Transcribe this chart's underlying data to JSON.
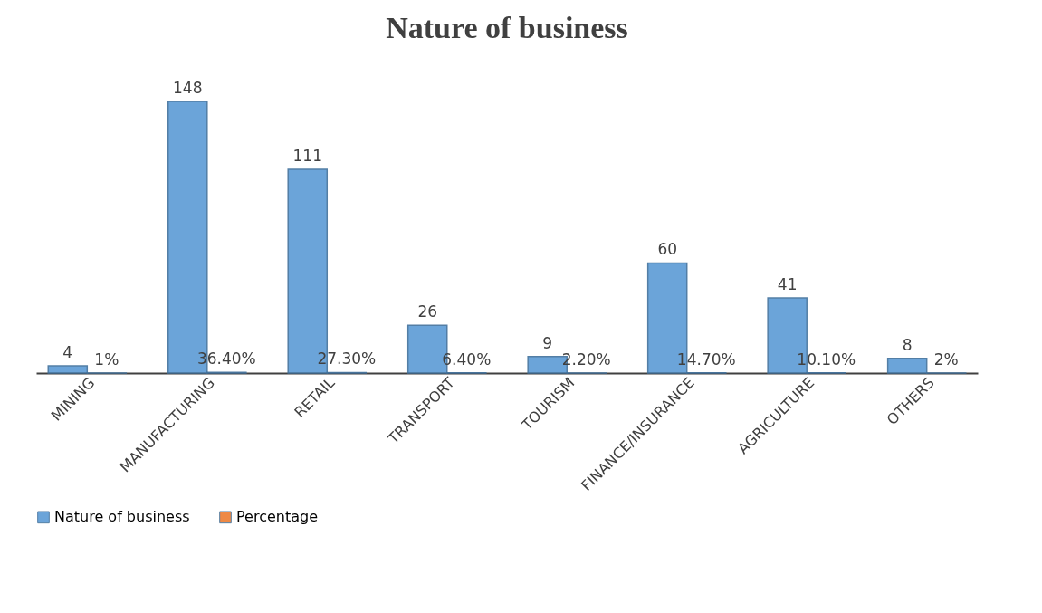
{
  "chart_data": {
    "type": "bar",
    "title": "Nature of business",
    "categories": [
      "MINING",
      "MANUFACTURING",
      "RETAIL",
      "TRANSPORT",
      "TOURISM",
      "FINANCE/INSURANCE",
      "AGRICULTURE",
      "OTHERS"
    ],
    "series": [
      {
        "name": "Nature of business",
        "color": "#5b9bd5",
        "values": [
          4,
          148,
          111,
          26,
          9,
          60,
          41,
          8
        ],
        "value_labels": [
          "4",
          "148",
          "111",
          "26",
          "9",
          "60",
          "41",
          "8"
        ]
      },
      {
        "name": "Percentage",
        "color": "#ed7d31",
        "values": [
          0.01,
          0.364,
          0.273,
          0.064,
          0.022,
          0.147,
          0.101,
          0.02
        ],
        "value_labels": [
          "1%",
          "36.40%",
          "27.30%",
          "6.40%",
          "2.20%",
          "14.70%",
          "10.10%",
          "2%"
        ]
      }
    ],
    "tick_labels": "x",
    "legend": "bottom"
  }
}
